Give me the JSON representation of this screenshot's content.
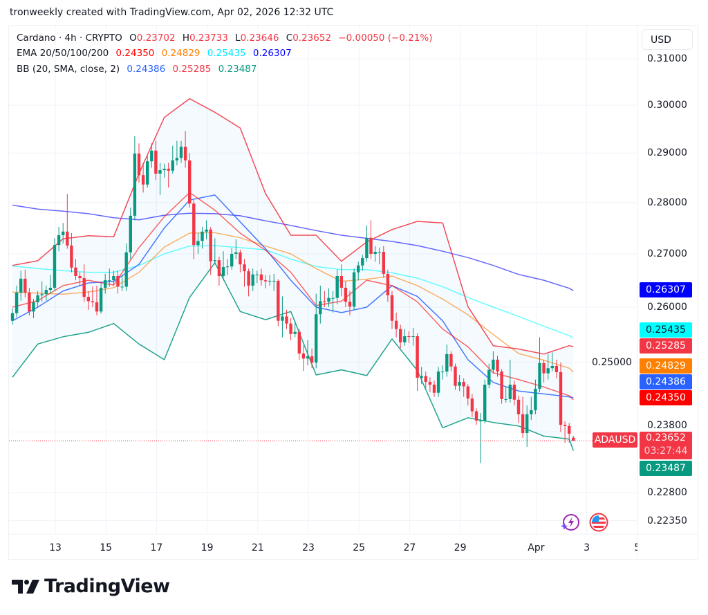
{
  "credit": "tronweekly created with TradingView.com, Apr 02, 2026 12:32 UTC",
  "legend": {
    "title": "Cardano · 4h · CRYPTO",
    "o_label": "O",
    "o": "0.23702",
    "h_label": "H",
    "h": "0.23733",
    "l_label": "L",
    "l": "0.23646",
    "c_label": "C",
    "c": "0.23652",
    "change": "−0.00050 (−0.21%)",
    "ema_label": "EMA 20/50/100/200",
    "ema20": "0.24350",
    "ema50": "0.24829",
    "ema100": "0.25435",
    "ema200": "0.26307",
    "bb_label": "BB (20, SMA, close, 2)",
    "bb_basis": "0.24386",
    "bb_upper": "0.25285",
    "bb_lower": "0.23487"
  },
  "currency_button": "USD",
  "symbol_tag": "ADAUSD",
  "price_box": {
    "price": "0.23652",
    "countdown": "03:27:44"
  },
  "tags": [
    {
      "value": "0.26307",
      "bg": "#0000ff",
      "fg": "#ffffff"
    },
    {
      "value": "0.25435",
      "bg": "#00ffff",
      "fg": "#131722"
    },
    {
      "value": "0.25285",
      "bg": "#f23645",
      "fg": "#ffffff"
    },
    {
      "value": "0.24829",
      "bg": "#ff7f00",
      "fg": "#ffffff"
    },
    {
      "value": "0.24386",
      "bg": "#2962ff",
      "fg": "#ffffff"
    },
    {
      "value": "0.24350",
      "bg": "#ff0000",
      "fg": "#ffffff"
    },
    {
      "value": "0.23487",
      "bg": "#089981",
      "fg": "#ffffff"
    }
  ],
  "icons": [
    "lightning-sparkle-icon",
    "us-flag-icon"
  ],
  "logo_text": "TradingView",
  "chart_data": {
    "type": "candlestick",
    "symbol": "Cardano",
    "interval": "4h",
    "y_scale": "log",
    "ylim": [
      0.221,
      0.315
    ],
    "grid": true,
    "colors": {
      "up": "#089981",
      "down": "#f23645",
      "ema20": "#ff0000",
      "ema50": "#ff7f00",
      "ema100": "#00ffff",
      "ema200": "#0000ff",
      "bb_basis": "#2962ff",
      "bb_upper": "#f23645",
      "bb_lower": "#089981"
    },
    "y_ticks": [
      "0.31000",
      "0.30000",
      "0.29000",
      "0.28000",
      "0.27000",
      "0.26000",
      "0.25000",
      "0.23800",
      "0.22800",
      "0.22350"
    ],
    "x_ticks": [
      {
        "date": "2026-03-13",
        "label": "13"
      },
      {
        "date": "2026-03-15",
        "label": "15"
      },
      {
        "date": "2026-03-17",
        "label": "17"
      },
      {
        "date": "2026-03-19",
        "label": "19"
      },
      {
        "date": "2026-03-21",
        "label": "21"
      },
      {
        "date": "2026-03-23",
        "label": "23"
      },
      {
        "date": "2026-03-25",
        "label": "25"
      },
      {
        "date": "2026-03-27",
        "label": "27"
      },
      {
        "date": "2026-03-29",
        "label": "29"
      },
      {
        "date": "2026-04-01",
        "label": "Apr"
      },
      {
        "date": "2026-04-03",
        "label": "3"
      },
      {
        "date": "2026-04-05",
        "label": "5"
      }
    ],
    "last_price": 0.23652,
    "candles": [
      [
        0.2575,
        0.2598,
        0.2568,
        0.2589
      ],
      [
        0.2589,
        0.264,
        0.2582,
        0.2627
      ],
      [
        0.2627,
        0.2668,
        0.2612,
        0.2653
      ],
      [
        0.2653,
        0.267,
        0.2618,
        0.2627
      ],
      [
        0.2627,
        0.2636,
        0.2585,
        0.2592
      ],
      [
        0.2592,
        0.2615,
        0.258,
        0.2609
      ],
      [
        0.2609,
        0.263,
        0.26,
        0.2622
      ],
      [
        0.2622,
        0.2648,
        0.261,
        0.2624
      ],
      [
        0.2624,
        0.264,
        0.2612,
        0.2632
      ],
      [
        0.2632,
        0.266,
        0.2625,
        0.2636
      ],
      [
        0.2636,
        0.273,
        0.263,
        0.2717
      ],
      [
        0.2717,
        0.2752,
        0.2705,
        0.2736
      ],
      [
        0.2736,
        0.276,
        0.272,
        0.2743
      ],
      [
        0.2743,
        0.2817,
        0.271,
        0.2716
      ],
      [
        0.2716,
        0.274,
        0.2665,
        0.2674
      ],
      [
        0.2674,
        0.269,
        0.265,
        0.2658
      ],
      [
        0.2658,
        0.2665,
        0.264,
        0.2654
      ],
      [
        0.2654,
        0.268,
        0.261,
        0.2619
      ],
      [
        0.2619,
        0.263,
        0.2595,
        0.2611
      ],
      [
        0.2611,
        0.2638,
        0.26,
        0.2609
      ],
      [
        0.2609,
        0.264,
        0.2585,
        0.2592
      ],
      [
        0.2592,
        0.2645,
        0.2588,
        0.2636
      ],
      [
        0.2636,
        0.2662,
        0.2625,
        0.265
      ],
      [
        0.265,
        0.2672,
        0.2638,
        0.265
      ],
      [
        0.265,
        0.2668,
        0.264,
        0.2658
      ],
      [
        0.2658,
        0.2668,
        0.2625,
        0.2638
      ],
      [
        0.2638,
        0.266,
        0.263,
        0.2638
      ],
      [
        0.2638,
        0.272,
        0.263,
        0.2703
      ],
      [
        0.2703,
        0.279,
        0.269,
        0.2774
      ],
      [
        0.2774,
        0.2935,
        0.2765,
        0.2899
      ],
      [
        0.2899,
        0.292,
        0.284,
        0.2855
      ],
      [
        0.2855,
        0.288,
        0.282,
        0.2836
      ],
      [
        0.2836,
        0.2895,
        0.283,
        0.2883
      ],
      [
        0.2883,
        0.292,
        0.287,
        0.2905
      ],
      [
        0.2905,
        0.2925,
        0.2845,
        0.2858
      ],
      [
        0.2858,
        0.288,
        0.2815,
        0.2865
      ],
      [
        0.2865,
        0.2878,
        0.285,
        0.2868
      ],
      [
        0.2868,
        0.288,
        0.283,
        0.2864
      ],
      [
        0.2864,
        0.2915,
        0.2858,
        0.2885
      ],
      [
        0.2885,
        0.2925,
        0.2875,
        0.289
      ],
      [
        0.289,
        0.2925,
        0.288,
        0.2913
      ],
      [
        0.2913,
        0.2946,
        0.287,
        0.2885
      ],
      [
        0.2885,
        0.29,
        0.279,
        0.2798
      ],
      [
        0.2798,
        0.2805,
        0.269,
        0.2717
      ],
      [
        0.2717,
        0.274,
        0.27,
        0.2725
      ],
      [
        0.2725,
        0.2752,
        0.271,
        0.2743
      ],
      [
        0.2743,
        0.2765,
        0.2728,
        0.2747
      ],
      [
        0.2747,
        0.2752,
        0.266,
        0.2686
      ],
      [
        0.2686,
        0.273,
        0.268,
        0.2688
      ],
      [
        0.2688,
        0.2695,
        0.264,
        0.2658
      ],
      [
        0.2658,
        0.2705,
        0.265,
        0.2675
      ],
      [
        0.2675,
        0.269,
        0.266,
        0.2676
      ],
      [
        0.2676,
        0.2712,
        0.267,
        0.27
      ],
      [
        0.27,
        0.2728,
        0.269,
        0.2703
      ],
      [
        0.2703,
        0.2708,
        0.2665,
        0.268
      ],
      [
        0.268,
        0.269,
        0.2638,
        0.2667
      ],
      [
        0.2667,
        0.2672,
        0.262,
        0.264
      ],
      [
        0.264,
        0.2672,
        0.263,
        0.2661
      ],
      [
        0.2661,
        0.2668,
        0.2645,
        0.2661
      ],
      [
        0.2661,
        0.2672,
        0.264,
        0.265
      ],
      [
        0.265,
        0.266,
        0.2635,
        0.2648
      ],
      [
        0.2648,
        0.266,
        0.264,
        0.2649
      ],
      [
        0.2649,
        0.2662,
        0.263,
        0.2649
      ],
      [
        0.2649,
        0.2652,
        0.2565,
        0.2575
      ],
      [
        0.2575,
        0.262,
        0.2545,
        0.2583
      ],
      [
        0.2583,
        0.2595,
        0.256,
        0.257
      ],
      [
        0.257,
        0.258,
        0.254,
        0.2551
      ],
      [
        0.2551,
        0.2575,
        0.2545,
        0.2555
      ],
      [
        0.2555,
        0.256,
        0.2505,
        0.2516
      ],
      [
        0.2516,
        0.253,
        0.2485,
        0.2507
      ],
      [
        0.2507,
        0.254,
        0.2495,
        0.2511
      ],
      [
        0.2511,
        0.2525,
        0.249,
        0.25
      ],
      [
        0.25,
        0.2625,
        0.249,
        0.2587
      ],
      [
        0.2587,
        0.264,
        0.257,
        0.2611
      ],
      [
        0.2611,
        0.263,
        0.26,
        0.261
      ],
      [
        0.261,
        0.2635,
        0.26,
        0.2617
      ],
      [
        0.2617,
        0.263,
        0.259,
        0.2617
      ],
      [
        0.2617,
        0.267,
        0.2605,
        0.2658
      ],
      [
        0.2658,
        0.268,
        0.262,
        0.2636
      ],
      [
        0.2636,
        0.2648,
        0.26,
        0.261
      ],
      [
        0.261,
        0.263,
        0.2585,
        0.2601
      ],
      [
        0.2601,
        0.2672,
        0.2595,
        0.2665
      ],
      [
        0.2665,
        0.2685,
        0.265,
        0.2678
      ],
      [
        0.2678,
        0.2698,
        0.2668,
        0.2692
      ],
      [
        0.2692,
        0.2755,
        0.2685,
        0.2731
      ],
      [
        0.2731,
        0.2765,
        0.269,
        0.27
      ],
      [
        0.27,
        0.2715,
        0.2685,
        0.2704
      ],
      [
        0.2704,
        0.2712,
        0.268,
        0.2704
      ],
      [
        0.2704,
        0.2715,
        0.2655,
        0.2662
      ],
      [
        0.2662,
        0.267,
        0.261,
        0.2622
      ],
      [
        0.2622,
        0.263,
        0.256,
        0.2575
      ],
      [
        0.2575,
        0.259,
        0.2545,
        0.256
      ],
      [
        0.256,
        0.2568,
        0.2525,
        0.2536
      ],
      [
        0.2536,
        0.256,
        0.253,
        0.2547
      ],
      [
        0.2547,
        0.2556,
        0.2535,
        0.2546
      ],
      [
        0.2546,
        0.2562,
        0.253,
        0.2547
      ],
      [
        0.2547,
        0.2552,
        0.245,
        0.2473
      ],
      [
        0.2473,
        0.2492,
        0.2462,
        0.2476
      ],
      [
        0.2476,
        0.2484,
        0.2455,
        0.2466
      ],
      [
        0.2466,
        0.2474,
        0.2448,
        0.2461
      ],
      [
        0.2461,
        0.2468,
        0.244,
        0.2447
      ],
      [
        0.2447,
        0.2492,
        0.244,
        0.2484
      ],
      [
        0.2484,
        0.2495,
        0.247,
        0.2484
      ],
      [
        0.2484,
        0.2532,
        0.2475,
        0.2515
      ],
      [
        0.2515,
        0.252,
        0.2485,
        0.2493
      ],
      [
        0.2493,
        0.2498,
        0.2452,
        0.2459
      ],
      [
        0.2459,
        0.2478,
        0.245,
        0.2466
      ],
      [
        0.2466,
        0.2472,
        0.244,
        0.2458
      ],
      [
        0.2458,
        0.2462,
        0.2425,
        0.2437
      ],
      [
        0.2437,
        0.2445,
        0.2405,
        0.2415
      ],
      [
        0.2415,
        0.242,
        0.2392,
        0.2399
      ],
      [
        0.2399,
        0.2412,
        0.2328,
        0.2399
      ],
      [
        0.2399,
        0.247,
        0.2395,
        0.2461
      ],
      [
        0.2461,
        0.2498,
        0.2455,
        0.2487
      ],
      [
        0.2487,
        0.252,
        0.248,
        0.2505
      ],
      [
        0.2505,
        0.2512,
        0.2475,
        0.2484
      ],
      [
        0.2484,
        0.2488,
        0.2428,
        0.2436
      ],
      [
        0.2436,
        0.2458,
        0.243,
        0.2436
      ],
      [
        0.2436,
        0.2505,
        0.243,
        0.2461
      ],
      [
        0.2461,
        0.2468,
        0.2425,
        0.2435
      ],
      [
        0.2435,
        0.2442,
        0.2395,
        0.241
      ],
      [
        0.241,
        0.244,
        0.237,
        0.2378
      ],
      [
        0.2378,
        0.2425,
        0.2355,
        0.241
      ],
      [
        0.241,
        0.244,
        0.24,
        0.2417
      ],
      [
        0.2417,
        0.247,
        0.241,
        0.2454
      ],
      [
        0.2454,
        0.2545,
        0.2448,
        0.2499
      ],
      [
        0.2499,
        0.2505,
        0.2465,
        0.2481
      ],
      [
        0.2481,
        0.2515,
        0.247,
        0.249
      ],
      [
        0.249,
        0.2518,
        0.2485,
        0.2494
      ],
      [
        0.2494,
        0.2505,
        0.2472,
        0.2483
      ],
      [
        0.2483,
        0.25,
        0.238,
        0.2392
      ],
      [
        0.2392,
        0.2398,
        0.2362,
        0.239
      ],
      [
        0.239,
        0.2395,
        0.2362,
        0.2377
      ],
      [
        0.23702,
        0.23733,
        0.23646,
        0.23652
      ]
    ],
    "indicators": {
      "ema200": [
        0.2795,
        0.2787,
        0.2783,
        0.2778,
        0.277,
        0.2766,
        0.2775,
        0.2779,
        0.2778,
        0.2774,
        0.2764,
        0.2755,
        0.2745,
        0.2736,
        0.273,
        0.2724,
        0.2716,
        0.2705,
        0.2693,
        0.2678,
        0.2661,
        0.265,
        0.2635,
        0.26307
      ],
      "ema100": [
        0.2677,
        0.2672,
        0.2668,
        0.2665,
        0.2665,
        0.2678,
        0.27,
        0.2715,
        0.2716,
        0.2712,
        0.2708,
        0.269,
        0.2676,
        0.267,
        0.267,
        0.2664,
        0.2654,
        0.2638,
        0.2618,
        0.26,
        0.2583,
        0.2565,
        0.2548,
        0.25435
      ],
      "ema50": [
        0.2628,
        0.2626,
        0.2624,
        0.2628,
        0.2636,
        0.2665,
        0.2713,
        0.274,
        0.2741,
        0.2731,
        0.2715,
        0.27,
        0.2672,
        0.2648,
        0.2652,
        0.2658,
        0.264,
        0.2615,
        0.2586,
        0.255,
        0.2516,
        0.2504,
        0.249,
        0.24829
      ],
      "ema20": [
        0.26,
        0.2612,
        0.264,
        0.265,
        0.2641,
        0.2712,
        0.2772,
        0.282,
        0.2785,
        0.274,
        0.2707,
        0.2665,
        0.2603,
        0.2611,
        0.265,
        0.264,
        0.261,
        0.256,
        0.2528,
        0.2482,
        0.247,
        0.2457,
        0.2442,
        0.2435
      ],
      "bb_basis": [
        0.2575,
        0.26,
        0.263,
        0.2645,
        0.2648,
        0.268,
        0.275,
        0.2805,
        0.2815,
        0.2762,
        0.271,
        0.265,
        0.26,
        0.259,
        0.26,
        0.264,
        0.262,
        0.2575,
        0.2505,
        0.2465,
        0.245,
        0.2445,
        0.244,
        0.24386
      ],
      "bb_upper": [
        0.2678,
        0.2687,
        0.2729,
        0.2735,
        0.2733,
        0.2858,
        0.2974,
        0.3014,
        0.2985,
        0.2952,
        0.2818,
        0.2736,
        0.2736,
        0.2686,
        0.2723,
        0.2747,
        0.2763,
        0.276,
        0.2601,
        0.253,
        0.2524,
        0.2515,
        0.253,
        0.25285
      ],
      "bb_lower": [
        0.2474,
        0.2533,
        0.2546,
        0.2554,
        0.257,
        0.2533,
        0.2505,
        0.2618,
        0.2683,
        0.2592,
        0.2577,
        0.2592,
        0.2478,
        0.2487,
        0.2477,
        0.2542,
        0.2486,
        0.2387,
        0.2404,
        0.2396,
        0.239,
        0.2373,
        0.2368,
        0.23487
      ]
    }
  }
}
